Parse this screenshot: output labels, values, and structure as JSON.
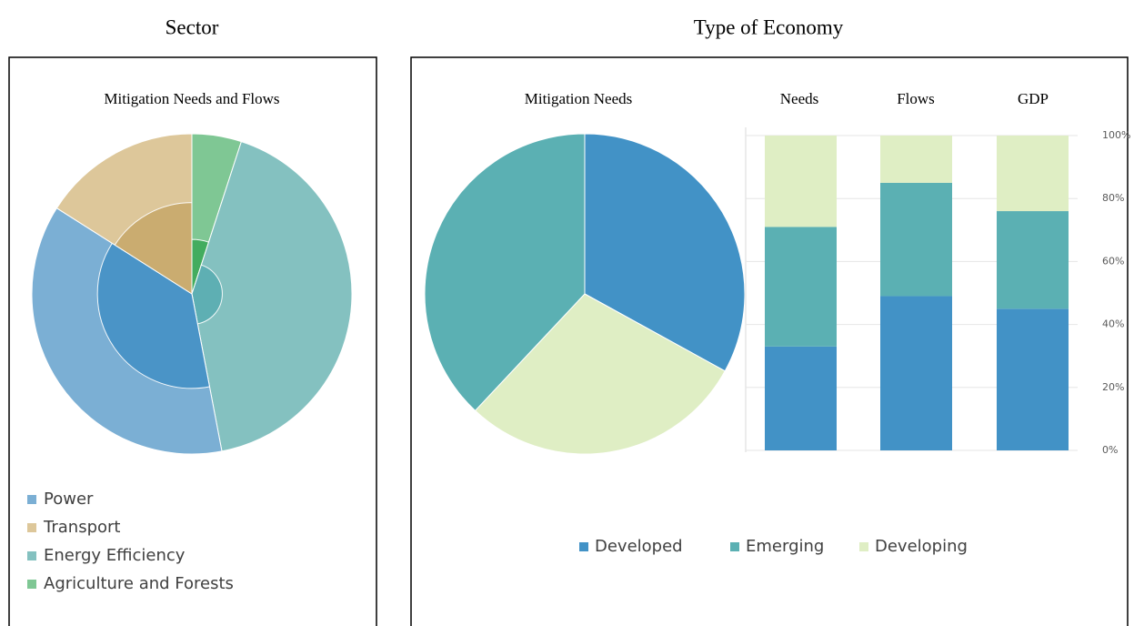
{
  "chart_data": [
    {
      "type": "nested_pie",
      "heading": "Sector",
      "title": "Mitigation Needs and Flows",
      "categories": [
        "Power",
        "Transport",
        "Energy Efficiency",
        "Agriculture and Forests"
      ],
      "values": [
        37,
        16,
        42,
        5
      ],
      "inner_values": [
        59,
        57,
        19,
        34
      ],
      "colors": [
        "#7bafd4",
        "#ddc79a",
        "#84c1c0",
        "#7fc794"
      ],
      "inner_colors": [
        "#4592c6",
        "#c9aa6c",
        "#5aaeb2",
        "#3daa5a"
      ]
    },
    {
      "type": "pie",
      "heading": "Type of Economy",
      "title": "Mitigation Needs",
      "values": [
        33,
        38,
        29
      ],
      "colors": [
        "#4292c6",
        "#5bb0b3",
        "#dfeec4"
      ]
    },
    {
      "type": "stacked_bar",
      "categories": [
        "Needs",
        "Flows",
        "GDP"
      ],
      "series": [
        {
          "name": "Developed",
          "color": "#4292c6",
          "values": [
            33,
            49,
            45
          ]
        },
        {
          "name": "Emerging",
          "color": "#5bb0b3",
          "values": [
            38,
            36,
            31
          ]
        },
        {
          "name": "Developing",
          "color": "#dfeec4",
          "values": [
            29,
            15,
            24
          ]
        }
      ],
      "ylim": [
        0,
        100
      ],
      "yticks": [
        {
          "value": 0,
          "label": "0%"
        },
        {
          "value": 20,
          "label": "20%"
        },
        {
          "value": 40,
          "label": "40%"
        },
        {
          "value": 60,
          "label": "60%"
        },
        {
          "value": 80,
          "label": "80%"
        },
        {
          "value": 100,
          "label": "100%"
        }
      ],
      "grid": true
    }
  ]
}
